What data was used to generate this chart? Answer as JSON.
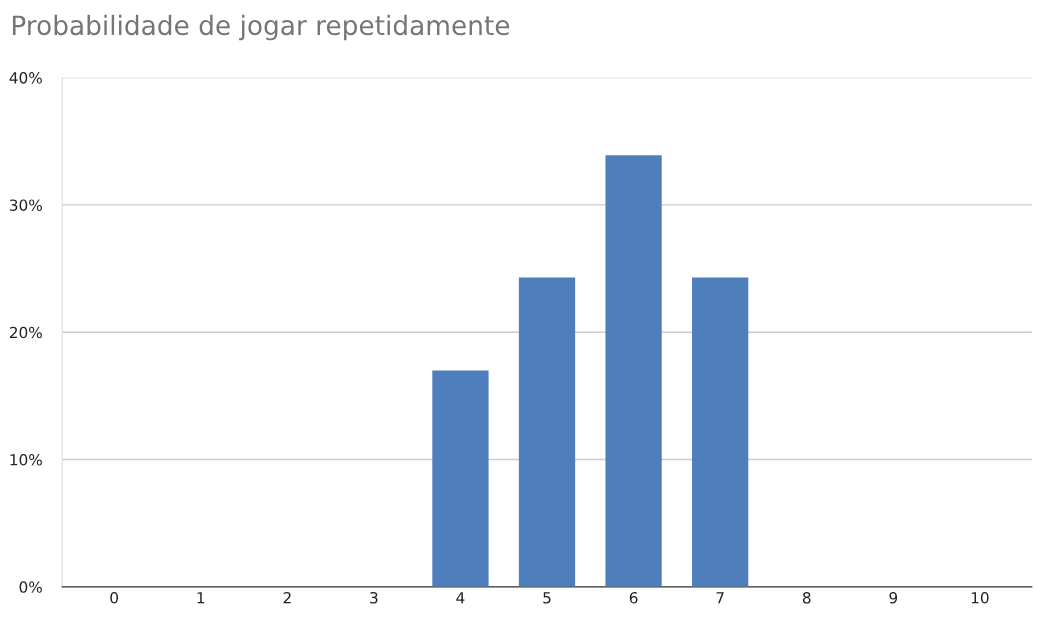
{
  "chart_data": {
    "type": "bar",
    "title": "Probabilidade de jogar repetidamente",
    "categories": [
      "0",
      "1",
      "2",
      "3",
      "4",
      "5",
      "6",
      "7",
      "8",
      "9",
      "10"
    ],
    "values": [
      0,
      0,
      0,
      0,
      17,
      24.3,
      33.9,
      24.3,
      0,
      0,
      0
    ],
    "color": "#4e7fbc",
    "ylim": [
      0,
      40
    ],
    "yticks": [
      {
        "value": 0,
        "label": "0%"
      },
      {
        "value": 10,
        "label": "10%"
      },
      {
        "value": 20,
        "label": "20%"
      },
      {
        "value": 30,
        "label": "30%"
      },
      {
        "value": 40,
        "label": "40%"
      }
    ],
    "grid": "y"
  }
}
